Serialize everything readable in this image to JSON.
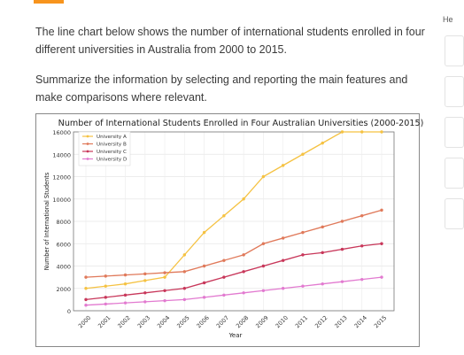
{
  "page": {
    "paragraph1": "The line chart below shows the number of international students enrolled in four different universities in Australia from 2000 to 2015.",
    "paragraph2": "Summarize the information by selecting and reporting the main features and make comparisons where relevant.",
    "side_label": "He"
  },
  "colors": {
    "accent": "#f7941d"
  },
  "chart_data": {
    "type": "line",
    "title": "Number of International Students Enrolled in Four Australian Universities (2000-2015)",
    "xlabel": "Year",
    "ylabel": "Number of International Students",
    "x": [
      "2000",
      "2001",
      "2002",
      "2003",
      "2004",
      "2005",
      "2006",
      "2007",
      "2008",
      "2009",
      "2010",
      "2011",
      "2012",
      "2013",
      "2014",
      "2015"
    ],
    "ylim": [
      0,
      16000
    ],
    "yticks": [
      0,
      2000,
      4000,
      6000,
      8000,
      10000,
      12000,
      14000,
      16000
    ],
    "grid": true,
    "legend": "top-left",
    "series": [
      {
        "name": "University A",
        "color": "#f5c242",
        "values": [
          2000,
          2200,
          2400,
          2700,
          3000,
          5000,
          7000,
          8500,
          10000,
          12000,
          13000,
          14000,
          15000,
          16000,
          16000,
          16000
        ]
      },
      {
        "name": "University B",
        "color": "#e0795a",
        "values": [
          3000,
          3100,
          3200,
          3300,
          3400,
          3500,
          4000,
          4500,
          5000,
          6000,
          6500,
          7000,
          7500,
          8000,
          8500,
          9000
        ]
      },
      {
        "name": "University C",
        "color": "#c8375a",
        "values": [
          1000,
          1200,
          1400,
          1600,
          1800,
          2000,
          2500,
          3000,
          3500,
          4000,
          4500,
          5000,
          5200,
          5500,
          5800,
          6000
        ]
      },
      {
        "name": "University D",
        "color": "#e27ad0",
        "values": [
          500,
          600,
          700,
          800,
          900,
          1000,
          1200,
          1400,
          1600,
          1800,
          2000,
          2200,
          2400,
          2600,
          2800,
          3000
        ]
      }
    ]
  }
}
